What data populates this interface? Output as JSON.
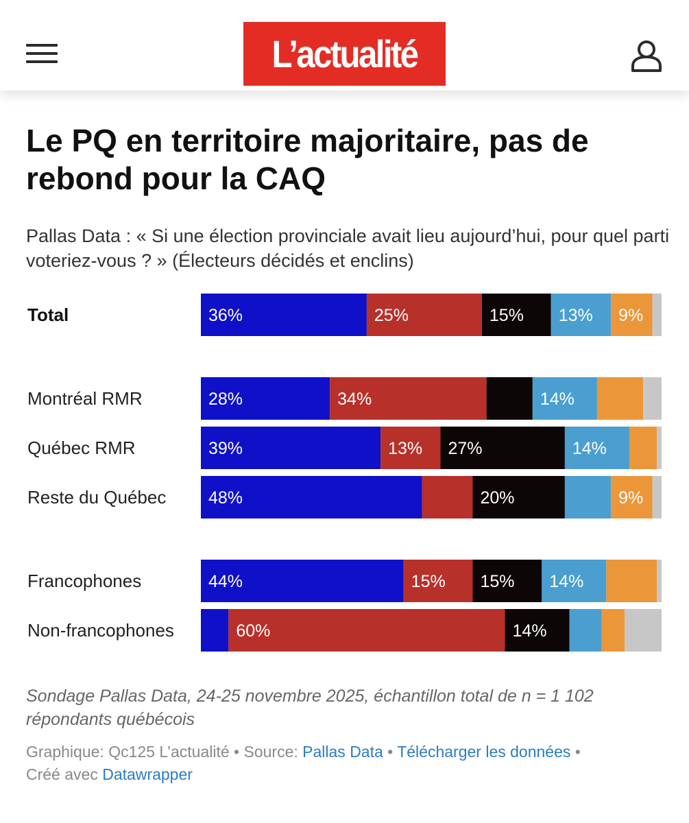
{
  "header": {
    "logo_text": "L’actualité",
    "menu_icon": "hamburger-menu-icon",
    "user_icon": "user-account-icon"
  },
  "article": {
    "title": "Le PQ en territoire majoritaire, pas de rebond pour la CAQ",
    "subtitle": "Pallas Data : « Si une élection provinciale avait lieu aujourd’hui, pour quel parti voteriez-vous ? » (Électeurs décidés et enclins)",
    "note": "Sondage Pallas Data, 24-25 novembre 2025, échantillon total de n = 1 102 répondants québécois"
  },
  "footer": {
    "graphic_label": "Graphique: Qc125 L’actualité",
    "sep": "•",
    "source_label": "Source:",
    "source_link": "Pallas Data",
    "download_link": "Télécharger les données",
    "created_label": "Créé avec",
    "created_link": "Datawrapper"
  },
  "chart_data": {
    "type": "bar",
    "orientation": "horizontal",
    "stacked": true,
    "xlim": [
      0,
      100
    ],
    "segment_colors": [
      "#1010c8",
      "#b8302a",
      "#0c0606",
      "#4a9fd0",
      "#ec963a",
      "#c7c7c7"
    ],
    "rows": [
      {
        "label": "Total",
        "bold": true,
        "values": [
          36,
          25,
          15,
          13,
          9,
          2
        ],
        "labels": [
          "36%",
          "25%",
          "15%",
          "13%",
          "9%",
          ""
        ]
      },
      {
        "label": "Montréal RMR",
        "values": [
          28,
          34,
          10,
          14,
          10,
          4
        ],
        "labels": [
          "28%",
          "34%",
          "",
          "14%",
          "",
          ""
        ]
      },
      {
        "label": "Québec RMR",
        "values": [
          39,
          13,
          27,
          14,
          6,
          1
        ],
        "labels": [
          "39%",
          "13%",
          "27%",
          "14%",
          "",
          ""
        ]
      },
      {
        "label": "Reste du Québec",
        "values": [
          48,
          11,
          20,
          10,
          9,
          2
        ],
        "labels": [
          "48%",
          "",
          "20%",
          "",
          "9%",
          ""
        ]
      },
      {
        "label": "Francophones",
        "values": [
          44,
          15,
          15,
          14,
          11,
          1
        ],
        "labels": [
          "44%",
          "15%",
          "15%",
          "14%",
          "",
          ""
        ]
      },
      {
        "label": "Non-francophones",
        "values": [
          6,
          60,
          14,
          7,
          5,
          8
        ],
        "labels": [
          "",
          "60%",
          "14%",
          "",
          "",
          ""
        ]
      }
    ]
  }
}
